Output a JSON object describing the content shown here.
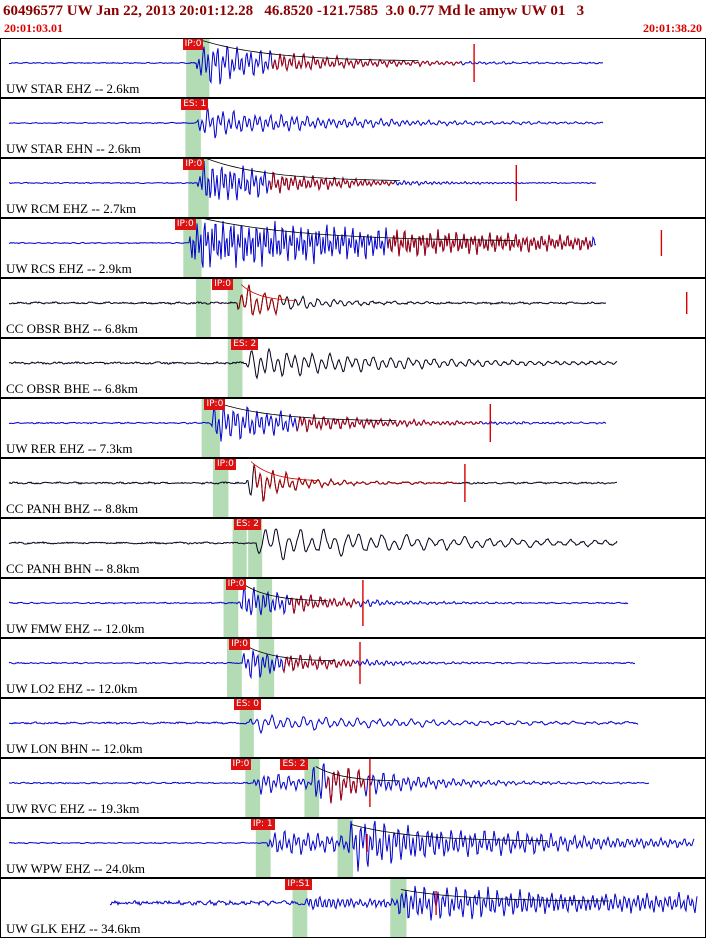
{
  "header": {
    "title": "60496577 UW Jan 22, 2013 20:01:12.28   46.8520 -121.7585  3.0 0.77 Md le amyw UW 01   3",
    "start_time": "20:01:03.01",
    "end_time": "20:01:38.20"
  },
  "chart_data": {
    "type": "line",
    "title": "60496577 UW Jan 22, 2013 20:01:12.28   46.8520 -121.7585  3.0 0.77 Md le amyw UW 01   3",
    "x_axis": {
      "start_label": "20:01:03.01",
      "end_label": "20:01:38.20",
      "duration_s": 35.19
    },
    "legend": "seismogram traces ordered by epicentral distance; green bands = pick windows, red flags = phase picks, red segments = coda/glitches",
    "colors": {
      "title": "#8b0000",
      "time": "#dd0000",
      "band": "#b4dcb4",
      "coda": "#aa0000",
      "spike": "#dd0000",
      "pick_bg": "#dd1111"
    },
    "traces": [
      {
        "label": "UW STAR EHZ -- 2.6km",
        "station": "STAR",
        "color": "#0000cc",
        "freq": 0.21,
        "noise": 0.4,
        "start": 0.012,
        "end": 0.855,
        "bursts": [
          [
            0.277,
            23,
            95
          ]
        ],
        "picks": [
          {
            "label": "IP:0",
            "x": 0.258
          }
        ],
        "bands": [
          {
            "x": 0.263,
            "w": 0.033
          }
        ],
        "spikes": [
          {
            "x": 0.672,
            "amp": 19
          }
        ],
        "redspans": [
          [
            0.385,
            0.655
          ]
        ],
        "envelope": {
          "color": "#000000",
          "x": 0.286,
          "amp": 21,
          "len": 0.31
        }
      },
      {
        "label": "UW STAR EHN -- 2.6km",
        "station": "STAR",
        "color": "#0000cc",
        "freq": 0.19,
        "noise": 0.4,
        "start": 0.012,
        "end": 0.855,
        "bursts": [
          [
            0.278,
            14,
            130
          ]
        ],
        "picks": [
          {
            "label": "ES: 1",
            "x": 0.256
          }
        ],
        "bands": [
          {
            "x": 0.262,
            "w": 0.022
          }
        ],
        "spikes": [],
        "redspans": [],
        "envelope": null
      },
      {
        "label": "UW RCM EHZ -- 2.7km",
        "station": "RCM",
        "color": "#0000cc",
        "freq": 0.23,
        "noise": 0.4,
        "start": 0.012,
        "end": 0.845,
        "bursts": [
          [
            0.279,
            26,
            85
          ]
        ],
        "picks": [
          {
            "label": "IP:0",
            "x": 0.259
          }
        ],
        "bands": [
          {
            "x": 0.266,
            "w": 0.029
          }
        ],
        "spikes": [
          {
            "x": 0.732,
            "amp": 18
          }
        ],
        "redspans": [
          [
            0.38,
            0.56
          ]
        ],
        "envelope": {
          "color": "#000000",
          "x": 0.288,
          "amp": 24,
          "len": 0.28
        }
      },
      {
        "label": "UW RCS EHZ -- 2.9km",
        "station": "RCS",
        "color": "#0000cc",
        "freq": 0.27,
        "noise": 0.4,
        "start": 0.012,
        "end": 0.845,
        "bursts": [
          [
            0.267,
            26,
            300
          ]
        ],
        "picks": [
          {
            "label": "IP:0",
            "x": 0.247
          }
        ],
        "bands": [
          {
            "x": 0.259,
            "w": 0.026
          }
        ],
        "spikes": [
          {
            "x": 0.938,
            "amp": 13
          }
        ],
        "redspans": [
          [
            0.55,
            0.84
          ]
        ],
        "envelope": {
          "color": "#000000",
          "x": 0.276,
          "amp": 25,
          "len": 0.46
        }
      },
      {
        "label": "CC OBSR BHZ -- 6.8km",
        "station": "OBSR",
        "color": "#00001a",
        "freq": 0.13,
        "noise": 0.8,
        "start": 0.012,
        "end": 0.86,
        "bursts": [
          [
            0.335,
            20,
            55
          ]
        ],
        "picks": [
          {
            "label": "IP:0",
            "x": 0.3
          }
        ],
        "bands": [
          {
            "x": 0.277,
            "w": 0.021
          },
          {
            "x": 0.322,
            "w": 0.021
          }
        ],
        "spikes": [
          {
            "x": 0.974,
            "amp": 11
          }
        ],
        "redspans": [
          [
            0.336,
            0.4
          ]
        ],
        "envelope": {
          "color": "#cc0000",
          "x": 0.341,
          "amp": 17,
          "len": 0.085
        }
      },
      {
        "label": "CC OBSR BHE -- 6.8km",
        "station": "OBSR",
        "color": "#00001a",
        "freq": 0.115,
        "noise": 0.8,
        "start": 0.012,
        "end": 0.875,
        "bursts": [
          [
            0.347,
            16,
            150
          ]
        ],
        "picks": [
          {
            "label": "ES: 2",
            "x": 0.327
          }
        ],
        "bands": [
          {
            "x": 0.322,
            "w": 0.021
          }
        ],
        "spikes": [],
        "redspans": [],
        "envelope": null
      },
      {
        "label": "UW RER EHZ -- 7.3km",
        "station": "RER",
        "color": "#0000cc",
        "freq": 0.21,
        "noise": 0.5,
        "start": 0.012,
        "end": 0.86,
        "bursts": [
          [
            0.297,
            21,
            100
          ]
        ],
        "picks": [
          {
            "label": "IP:0",
            "x": 0.289
          }
        ],
        "bands": [
          {
            "x": 0.285,
            "w": 0.026
          }
        ],
        "spikes": [
          {
            "x": 0.695,
            "amp": 19
          }
        ],
        "redspans": [
          [
            0.42,
            0.685
          ]
        ],
        "envelope": {
          "color": "#000000",
          "x": 0.306,
          "amp": 19,
          "len": 0.26
        }
      },
      {
        "label": "CC PANH BHZ -- 8.8km",
        "station": "PANH",
        "color": "#00001a",
        "freq": 0.155,
        "noise": 0.7,
        "start": 0.012,
        "end": 0.875,
        "bursts": [
          [
            0.348,
            23,
            40
          ]
        ],
        "picks": [
          {
            "label": "IP:0",
            "x": 0.304
          }
        ],
        "bands": [
          {
            "x": 0.301,
            "w": 0.022
          }
        ],
        "spikes": [
          {
            "x": 0.659,
            "amp": 19
          }
        ],
        "redspans": [
          [
            0.36,
            0.65
          ]
        ],
        "envelope": {
          "color": "#cc0000",
          "x": 0.355,
          "amp": 20,
          "len": 0.1
        }
      },
      {
        "label": "CC PANH BHN -- 8.8km",
        "station": "PANH",
        "color": "#00001a",
        "freq": 0.085,
        "noise": 0.7,
        "start": 0.012,
        "end": 0.875,
        "bursts": [
          [
            0.362,
            17,
            190
          ]
        ],
        "picks": [
          {
            "label": "ES: 2",
            "x": 0.331
          }
        ],
        "bands": [
          {
            "x": 0.329,
            "w": 0.02
          },
          {
            "x": 0.351,
            "w": 0.02
          }
        ],
        "spikes": [],
        "redspans": [],
        "envelope": null
      },
      {
        "label": "UW FMW EHZ -- 12.0km",
        "station": "FMW",
        "color": "#0000cc",
        "freq": 0.21,
        "noise": 0.5,
        "start": 0.012,
        "end": 0.89,
        "bursts": [
          [
            0.337,
            19,
            70
          ]
        ],
        "picks": [
          {
            "label": "IP:0",
            "x": 0.319
          }
        ],
        "bands": [
          {
            "x": 0.316,
            "w": 0.021
          },
          {
            "x": 0.363,
            "w": 0.022
          }
        ],
        "spikes": [
          {
            "x": 0.514,
            "amp": 23
          }
        ],
        "redspans": [
          [
            0.41,
            0.508
          ]
        ],
        "envelope": {
          "color": "#000000",
          "x": 0.345,
          "amp": 17,
          "len": 0.12
        }
      },
      {
        "label": "UW LO2 EHZ -- 12.0km",
        "station": "LO2",
        "color": "#0000cc",
        "freq": 0.21,
        "noise": 0.5,
        "start": 0.012,
        "end": 0.9,
        "bursts": [
          [
            0.342,
            17,
            70
          ]
        ],
        "picks": [
          {
            "label": "IP:0",
            "x": 0.324
          }
        ],
        "bands": [
          {
            "x": 0.321,
            "w": 0.021
          },
          {
            "x": 0.366,
            "w": 0.022
          }
        ],
        "spikes": [
          {
            "x": 0.51,
            "amp": 21
          }
        ],
        "redspans": [
          [
            0.4,
            0.504
          ]
        ],
        "envelope": {
          "color": "#000000",
          "x": 0.35,
          "amp": 15,
          "len": 0.13
        }
      },
      {
        "label": "UW LON BHN -- 12.0km",
        "station": "LON",
        "color": "#0000cc",
        "freq": 0.13,
        "noise": 0.7,
        "start": 0.012,
        "end": 0.905,
        "bursts": [
          [
            0.352,
            8,
            160
          ]
        ],
        "picks": [
          {
            "label": "ES: 0",
            "x": 0.331
          }
        ],
        "bands": [
          {
            "x": 0.339,
            "w": 0.02
          }
        ],
        "spikes": [],
        "redspans": [],
        "envelope": null
      },
      {
        "label": "UW RVC EHZ -- 19.3km",
        "station": "RVC",
        "color": "#0000cc",
        "freq": 0.2,
        "noise": 0.5,
        "start": 0.012,
        "end": 0.92,
        "bursts": [
          [
            0.358,
            11,
            60
          ],
          [
            0.44,
            17,
            85
          ]
        ],
        "picks": [
          {
            "label": "IP:0",
            "x": 0.326
          },
          {
            "label": "ES: 2",
            "x": 0.397
          }
        ],
        "bands": [
          {
            "x": 0.347,
            "w": 0.021
          },
          {
            "x": 0.431,
            "w": 0.021
          }
        ],
        "spikes": [
          {
            "x": 0.524,
            "amp": 24
          }
        ],
        "redspans": [
          [
            0.462,
            0.518
          ]
        ],
        "envelope": {
          "color": "#000000",
          "x": 0.447,
          "amp": 15,
          "len": 0.12
        }
      },
      {
        "label": "UW WPW EHZ -- 24.0km",
        "station": "WPW",
        "color": "#0000cc",
        "freq": 0.21,
        "noise": 0.4,
        "start": 0.012,
        "end": 0.985,
        "bursts": [
          [
            0.378,
            13,
            110
          ],
          [
            0.492,
            19,
            200
          ]
        ],
        "picks": [
          {
            "label": "IP: 1",
            "x": 0.355
          }
        ],
        "bands": [
          {
            "x": 0.362,
            "w": 0.021
          },
          {
            "x": 0.478,
            "w": 0.022
          }
        ],
        "spikes": [
          {
            "x": 0.52,
            "amp": 9
          }
        ],
        "redspans": [],
        "envelope": {
          "color": "#000000",
          "x": 0.498,
          "amp": 17,
          "len": 0.28
        }
      },
      {
        "label": "UW GLK EHZ -- 34.6km",
        "station": "GLK",
        "color": "#0000cc",
        "freq": 0.22,
        "noise": 1.6,
        "start": 0.155,
        "end": 0.988,
        "bursts": [
          [
            0.427,
            8,
            100
          ],
          [
            0.562,
            14,
            500
          ]
        ],
        "picks": [
          {
            "label": "IP:S1",
            "x": 0.404
          }
        ],
        "bands": [
          {
            "x": 0.414,
            "w": 0.021
          },
          {
            "x": 0.553,
            "w": 0.023
          }
        ],
        "spikes": [
          {
            "x": 0.618,
            "amp": 12
          }
        ],
        "redspans": [],
        "envelope": {
          "color": "#000000",
          "x": 0.568,
          "amp": 12,
          "len": 0.3
        }
      }
    ]
  }
}
